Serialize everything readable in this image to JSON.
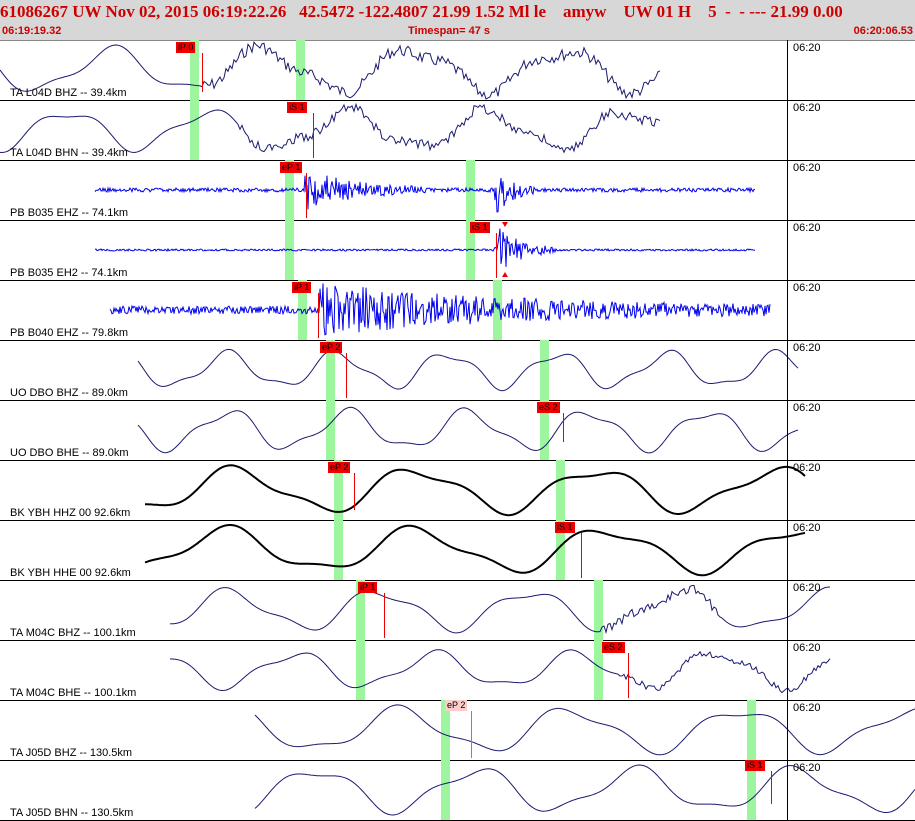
{
  "header": {
    "line1": "61086267 UW Nov 02, 2015 06:19:22.26   42.5472 -122.4807 21.99 1.52 Ml le    amyw    UW 01 H    5  -  - --- 21.99 0.00",
    "start_time": "06:19:19.32",
    "timespan": "Timespan=  47 s",
    "end_time": "06:20:06.53"
  },
  "colors": {
    "header_bg": "#d7d7d7",
    "header_text": "#cc0000",
    "trace_navy": "#1a1a6e",
    "trace_blue": "#0000ee",
    "trace_black": "#000000",
    "pick_red": "#ee0000",
    "pick_pink": "#ffcccc",
    "green_bar": "#9df59d"
  },
  "panels": [
    {
      "label": "TA L04D BHZ -- 39.4km",
      "time": "06:20",
      "color": "navy",
      "picks": [
        {
          "text": "iP 0",
          "style": "red"
        }
      ]
    },
    {
      "label": "TA L04D BHN -- 39.4km",
      "time": "06:20",
      "color": "navy",
      "picks": [
        {
          "text": "iS 1",
          "style": "red"
        }
      ]
    },
    {
      "label": "PB B035 EHZ -- 74.1km",
      "time": "06:20",
      "color": "blue",
      "picks": [
        {
          "text": "eP 1",
          "style": "red"
        }
      ]
    },
    {
      "label": "PB B035 EH2 -- 74.1km",
      "time": "06:20",
      "color": "blue",
      "picks": [
        {
          "text": "iS 1",
          "style": "red"
        }
      ]
    },
    {
      "label": "PB B040 EHZ -- 79.8km",
      "time": "06:20",
      "color": "blue",
      "picks": [
        {
          "text": "iP 1",
          "style": "red"
        }
      ]
    },
    {
      "label": "UO DBO BHZ -- 89.0km",
      "time": "06:20",
      "color": "navy",
      "picks": [
        {
          "text": "eP 2",
          "style": "red"
        }
      ]
    },
    {
      "label": "UO DBO BHE -- 89.0km",
      "time": "06:20",
      "color": "navy",
      "picks": [
        {
          "text": "eS 2",
          "style": "red"
        }
      ]
    },
    {
      "label": "BK YBH HHZ 00 92.6km",
      "time": "06:20",
      "color": "black",
      "picks": [
        {
          "text": "eP 2",
          "style": "red"
        }
      ]
    },
    {
      "label": "BK YBH HHE 00 92.6km",
      "time": "06:20",
      "color": "black",
      "picks": [
        {
          "text": "iS 1",
          "style": "red"
        }
      ]
    },
    {
      "label": "TA M04C BHZ -- 100.1km",
      "time": "06:20",
      "color": "navy",
      "picks": [
        {
          "text": "iP 1",
          "style": "red"
        }
      ]
    },
    {
      "label": "TA M04C BHE -- 100.1km",
      "time": "06:20",
      "color": "navy",
      "picks": [
        {
          "text": "eS 2",
          "style": "red"
        }
      ]
    },
    {
      "label": "TA J05D BHZ -- 130.5km",
      "time": "06:20",
      "color": "navy",
      "picks": [
        {
          "text": "eP 2",
          "style": "pink"
        }
      ]
    },
    {
      "label": "TA J05D BHN -- 130.5km",
      "time": "06:20",
      "color": "navy",
      "picks": [
        {
          "text": "iS 1",
          "style": "red"
        }
      ]
    }
  ]
}
